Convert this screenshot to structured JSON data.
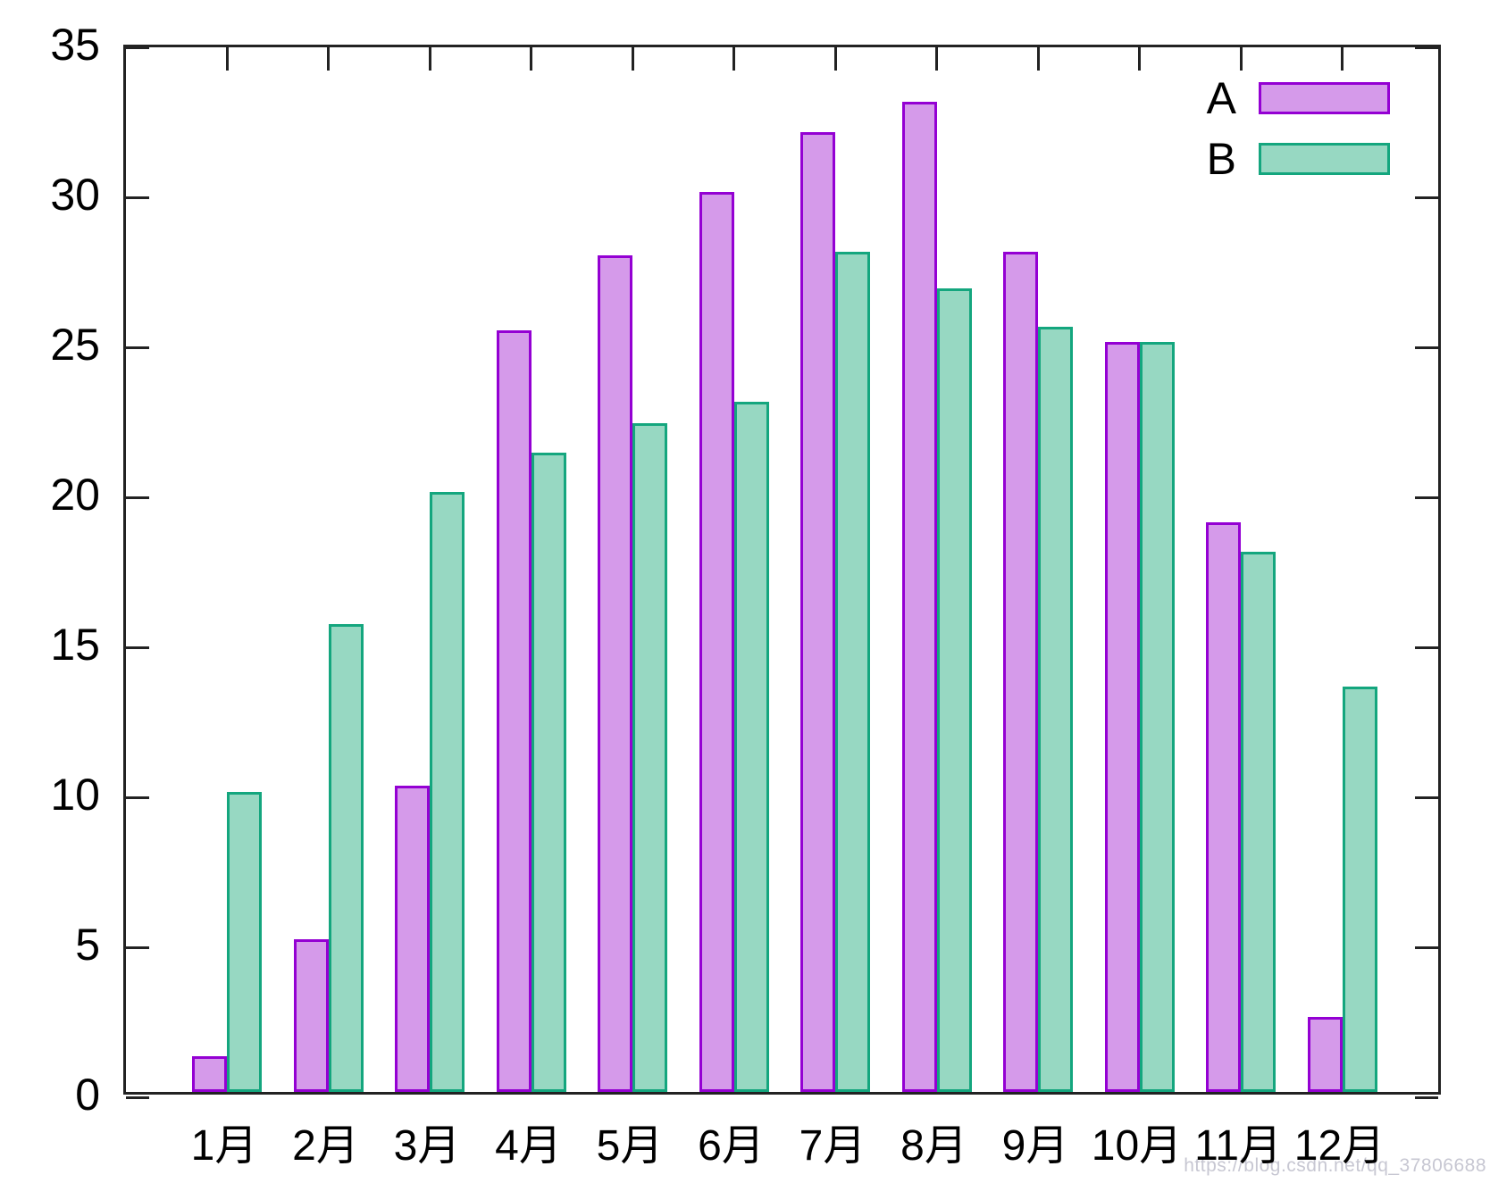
{
  "chart_data": {
    "type": "bar",
    "title": "",
    "xlabel": "",
    "ylabel": "",
    "categories": [
      "1月",
      "2月",
      "3月",
      "4月",
      "5月",
      "6月",
      "7月",
      "8月",
      "9月",
      "10月",
      "11月",
      "12月"
    ],
    "series": [
      {
        "name": "A",
        "values": [
          1.2,
          5.1,
          10.2,
          25.4,
          27.9,
          30,
          32,
          33,
          28,
          25,
          19,
          2.5
        ],
        "border_color": "#9400d3",
        "fill_color": "#d59aea"
      },
      {
        "name": "B",
        "values": [
          10,
          15.6,
          20,
          21.3,
          22.3,
          23,
          28,
          26.8,
          25.5,
          25,
          18,
          13.5
        ],
        "border_color": "#14a67e",
        "fill_color": "#97d8c2"
      }
    ],
    "ylim": [
      0,
      35
    ],
    "yticks": [
      0,
      5,
      10,
      15,
      20,
      25,
      30,
      35
    ],
    "grid": false,
    "legend_position": "top-right",
    "axis_color": "#222222"
  },
  "watermark": {
    "text": "https://blog.csdn.net/qq_37806688",
    "color": "#c7c7d2"
  }
}
